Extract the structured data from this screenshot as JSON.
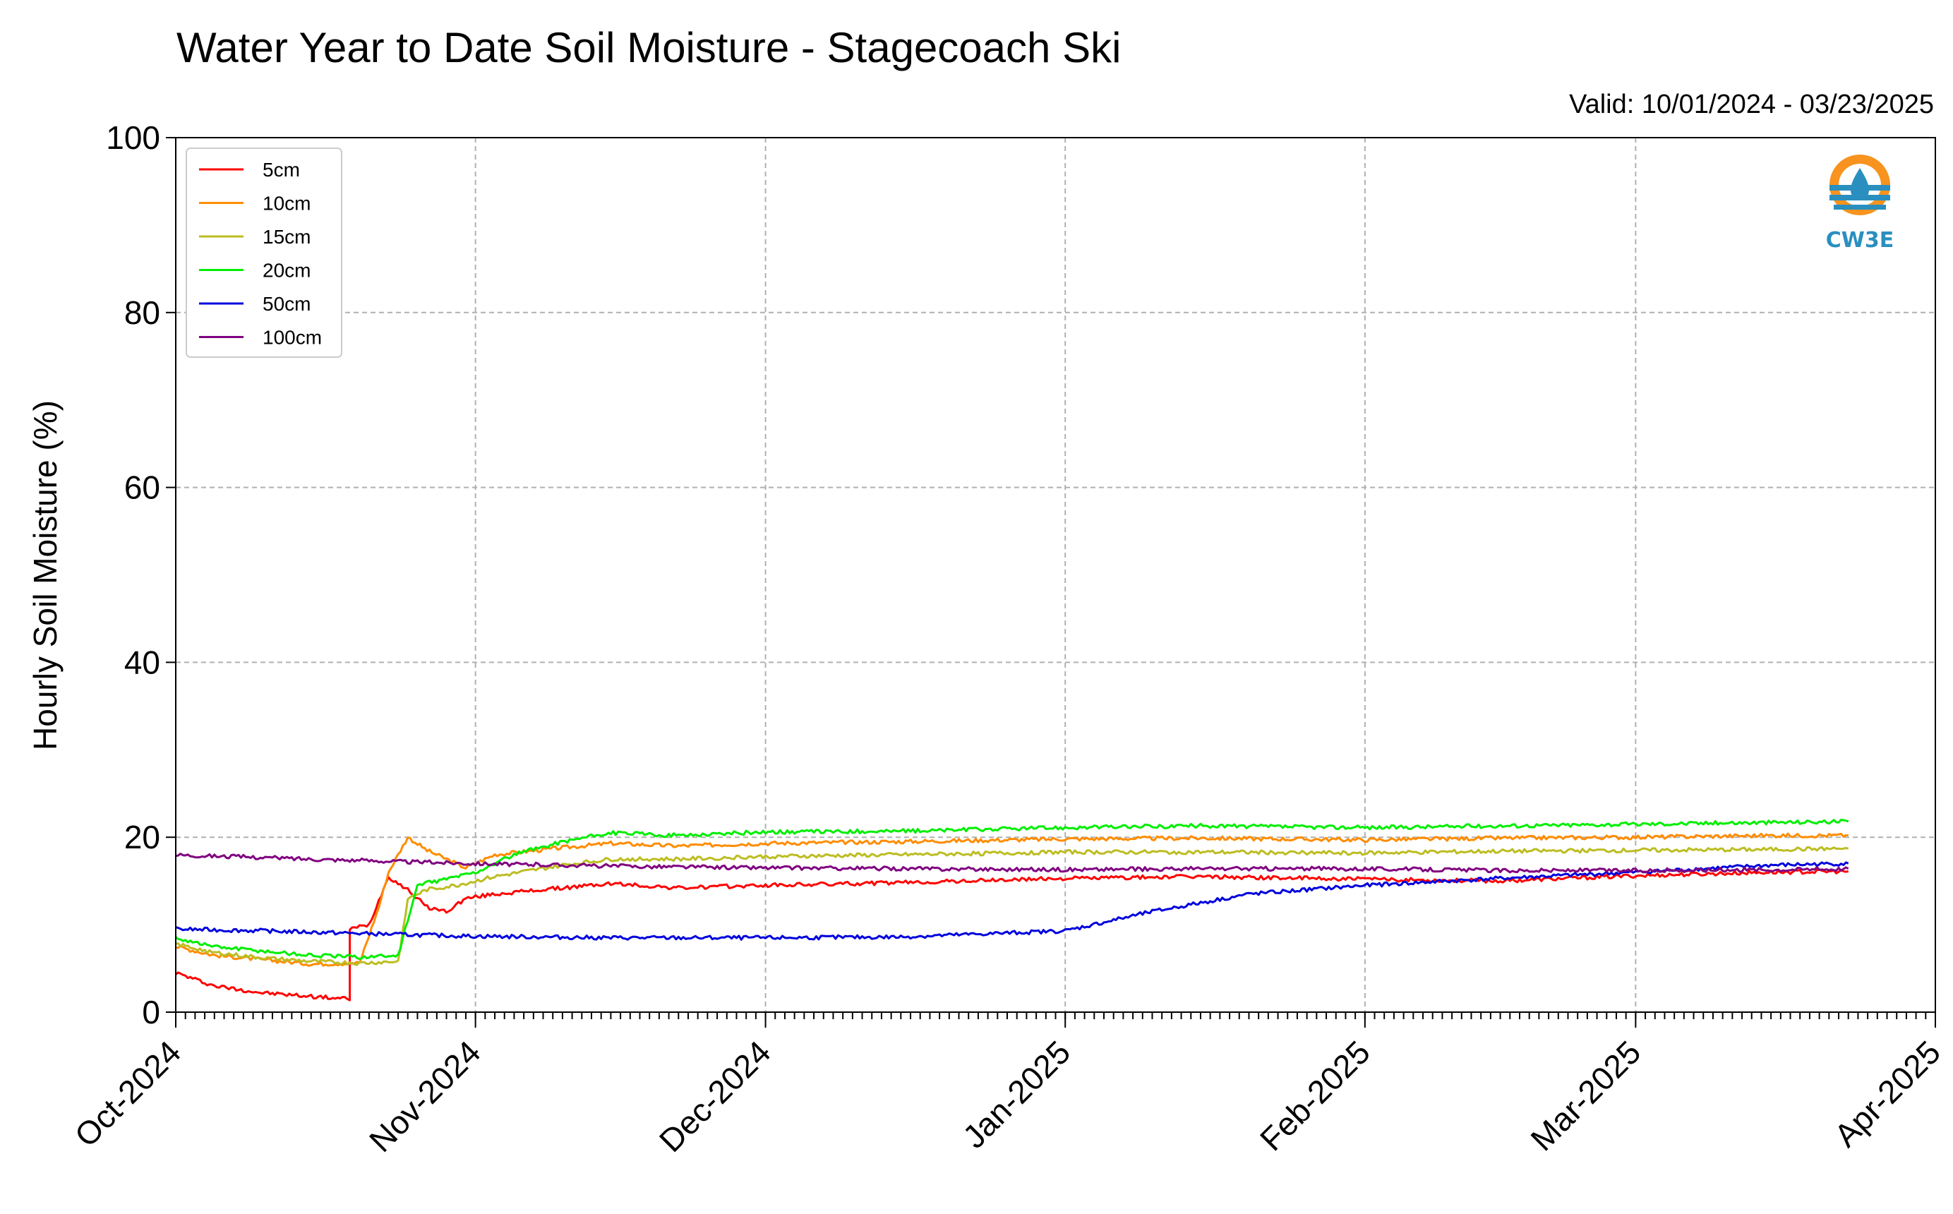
{
  "chart_data": {
    "type": "line",
    "title": "Water Year to Date Soil Moisture - Stagecoach Ski",
    "subtitle": "Valid: 10/01/2024 - 03/23/2025",
    "xlabel": "",
    "ylabel": "Hourly Soil Moisture (%)",
    "xlim": [
      "2024-10-01",
      "2025-04-01"
    ],
    "ylim": [
      0,
      100
    ],
    "x_ticks": [
      "Oct-2024",
      "Nov-2024",
      "Dec-2024",
      "Jan-2025",
      "Feb-2025",
      "Mar-2025",
      "Apr-2025"
    ],
    "y_ticks": [
      0,
      20,
      40,
      60,
      80,
      100
    ],
    "grid": true,
    "legend_position": "top-left",
    "series": [
      {
        "name": "5cm",
        "color": "#ff0000",
        "x": [
          "2024-10-01",
          "2024-10-05",
          "2024-10-10",
          "2024-10-15",
          "2024-10-19",
          "2024-10-19",
          "2024-10-21",
          "2024-10-23",
          "2024-10-25",
          "2024-10-27",
          "2024-10-29",
          "2024-10-31",
          "2024-11-03",
          "2024-11-08",
          "2024-11-15",
          "2024-11-22",
          "2024-12-01",
          "2024-12-15",
          "2025-01-01",
          "2025-01-15",
          "2025-02-01",
          "2025-02-15",
          "2025-03-01",
          "2025-03-15",
          "2025-03-23"
        ],
        "y": [
          4.5,
          3.0,
          2.2,
          1.8,
          1.5,
          9.5,
          10.0,
          15.5,
          14.0,
          12.0,
          11.5,
          13.0,
          13.5,
          14.0,
          14.7,
          14.2,
          14.5,
          14.8,
          15.3,
          15.5,
          15.2,
          15.0,
          15.6,
          16.0,
          16.1
        ]
      },
      {
        "name": "10cm",
        "color": "#ff8c00",
        "x": [
          "2024-10-01",
          "2024-10-05",
          "2024-10-10",
          "2024-10-15",
          "2024-10-20",
          "2024-10-22",
          "2024-10-23",
          "2024-10-25",
          "2024-10-27",
          "2024-10-29",
          "2024-10-31",
          "2024-11-03",
          "2024-11-10",
          "2024-11-15",
          "2024-11-22",
          "2024-12-01",
          "2024-12-15",
          "2025-01-01",
          "2025-01-15",
          "2025-02-01",
          "2025-02-15",
          "2025-03-01",
          "2025-03-15",
          "2025-03-23"
        ],
        "y": [
          7.5,
          6.5,
          6.0,
          5.5,
          5.6,
          12.0,
          16.0,
          20.0,
          18.5,
          17.5,
          16.5,
          18.0,
          18.8,
          19.3,
          19.0,
          19.3,
          19.5,
          19.8,
          19.9,
          19.7,
          19.9,
          20.0,
          20.2,
          20.2
        ]
      },
      {
        "name": "15cm",
        "color": "#bcbd22",
        "x": [
          "2024-10-01",
          "2024-10-05",
          "2024-10-10",
          "2024-10-15",
          "2024-10-20",
          "2024-10-24",
          "2024-10-25",
          "2024-10-27",
          "2024-10-30",
          "2024-11-03",
          "2024-11-10",
          "2024-11-15",
          "2024-11-22",
          "2024-12-01",
          "2024-12-15",
          "2025-01-01",
          "2025-01-15",
          "2025-02-01",
          "2025-02-15",
          "2025-03-01",
          "2025-03-15",
          "2025-03-23"
        ],
        "y": [
          7.8,
          6.8,
          6.2,
          5.8,
          5.6,
          5.8,
          13.0,
          14.0,
          14.5,
          15.5,
          16.8,
          17.5,
          17.5,
          17.8,
          18.0,
          18.3,
          18.3,
          18.2,
          18.4,
          18.5,
          18.6,
          18.7
        ]
      },
      {
        "name": "20cm",
        "color": "#00ee00",
        "x": [
          "2024-10-01",
          "2024-10-05",
          "2024-10-10",
          "2024-10-15",
          "2024-10-20",
          "2024-10-24",
          "2024-10-26",
          "2024-10-28",
          "2024-11-01",
          "2024-11-05",
          "2024-11-10",
          "2024-11-15",
          "2024-11-22",
          "2024-12-01",
          "2024-12-15",
          "2025-01-01",
          "2025-01-15",
          "2025-02-01",
          "2025-02-15",
          "2025-03-01",
          "2025-03-15",
          "2025-03-23"
        ],
        "y": [
          8.5,
          7.5,
          7.0,
          6.5,
          6.3,
          6.5,
          14.5,
          15.0,
          16.0,
          18.0,
          19.5,
          20.5,
          20.2,
          20.6,
          20.7,
          21.1,
          21.3,
          21.1,
          21.3,
          21.5,
          21.7,
          21.8
        ]
      },
      {
        "name": "50cm",
        "color": "#0000dd",
        "x": [
          "2024-10-01",
          "2024-10-10",
          "2024-10-20",
          "2024-10-31",
          "2024-11-15",
          "2024-12-01",
          "2024-12-15",
          "2025-01-01",
          "2025-01-10",
          "2025-01-20",
          "2025-02-01",
          "2025-02-15",
          "2025-03-01",
          "2025-03-15",
          "2025-03-23"
        ],
        "y": [
          9.5,
          9.3,
          9.0,
          8.7,
          8.5,
          8.5,
          8.6,
          9.3,
          11.5,
          13.5,
          14.5,
          15.3,
          16.0,
          16.8,
          17.0
        ]
      },
      {
        "name": "100cm",
        "color": "#800080",
        "x": [
          "2024-10-01",
          "2024-10-15",
          "2024-11-01",
          "2024-11-15",
          "2024-12-01",
          "2024-12-15",
          "2025-01-01",
          "2025-01-15",
          "2025-02-01",
          "2025-02-15",
          "2025-03-01",
          "2025-03-15",
          "2025-03-23"
        ],
        "y": [
          18.0,
          17.5,
          17.0,
          16.7,
          16.5,
          16.4,
          16.3,
          16.4,
          16.4,
          16.2,
          16.2,
          16.3,
          16.4
        ]
      }
    ]
  },
  "logo": {
    "text": "CW3E",
    "ring_color": "#f7931e",
    "wave_color": "#2a8fbf"
  }
}
